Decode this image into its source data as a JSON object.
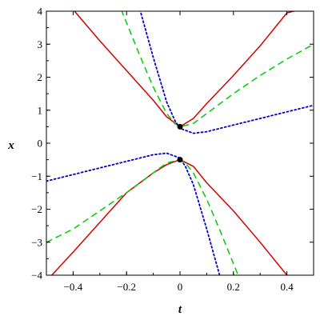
{
  "chart_data": {
    "type": "line",
    "title": "",
    "xlabel": "t",
    "ylabel": "x",
    "xlim": [
      -0.5,
      0.5
    ],
    "ylim": [
      -4,
      4
    ],
    "grid": false,
    "x_ticks": [
      -0.4,
      -0.2,
      0,
      0.2,
      0.4
    ],
    "x_tick_labels": [
      "−0.4",
      "−0.2",
      "0",
      "0.2",
      "0.4"
    ],
    "y_ticks": [
      -4,
      -3,
      -2,
      -1,
      0,
      1,
      2,
      3,
      4
    ],
    "y_tick_labels": [
      "−4",
      "−3",
      "−2",
      "−1",
      "0",
      "1",
      "2",
      "3",
      "4"
    ],
    "series": [
      {
        "style": "solid",
        "color": "#d40000",
        "x": [
          -0.4,
          -0.3,
          -0.2,
          -0.1,
          -0.05,
          0,
          0.05,
          0.1,
          0.2,
          0.3,
          0.4,
          0.5
        ],
        "y": [
          4.05,
          3.1,
          2.2,
          1.3,
          0.8,
          0.5,
          0.75,
          1.2,
          2.05,
          2.95,
          3.95,
          4.15
        ]
      },
      {
        "style": "solid",
        "color": "#d40000",
        "x": [
          -0.48,
          -0.4,
          -0.3,
          -0.2,
          -0.1,
          -0.05,
          0,
          0.05,
          0.1,
          0.2,
          0.3,
          0.4
        ],
        "y": [
          -4.0,
          -3.3,
          -2.4,
          -1.5,
          -0.9,
          -0.65,
          -0.5,
          -0.7,
          -1.2,
          -2.05,
          -3.0,
          -4.0
        ]
      },
      {
        "style": "dashed",
        "color": "#00cc00",
        "x": [
          -0.22,
          -0.15,
          -0.1,
          -0.05,
          -0.02,
          0,
          0.05,
          0.1,
          0.2,
          0.3,
          0.4,
          0.5
        ],
        "y": [
          4.05,
          2.65,
          1.7,
          0.9,
          0.6,
          0.5,
          0.6,
          0.9,
          1.5,
          2.05,
          2.55,
          3.0
        ]
      },
      {
        "style": "dashed",
        "color": "#00cc00",
        "x": [
          -0.5,
          -0.4,
          -0.3,
          -0.2,
          -0.1,
          -0.05,
          0,
          0.02,
          0.05,
          0.1,
          0.15,
          0.22
        ],
        "y": [
          -3.0,
          -2.6,
          -2.05,
          -1.5,
          -0.9,
          -0.6,
          -0.5,
          -0.6,
          -0.9,
          -1.7,
          -2.65,
          -4.05
        ]
      },
      {
        "style": "dotted",
        "color": "#0000cc",
        "x": [
          -0.15,
          -0.1,
          -0.05,
          -0.02,
          0,
          0.05,
          0.1,
          0.2,
          0.3,
          0.4,
          0.5
        ],
        "y": [
          4.05,
          2.6,
          1.25,
          0.7,
          0.45,
          0.3,
          0.35,
          0.55,
          0.75,
          0.95,
          1.15
        ]
      },
      {
        "style": "dotted",
        "color": "#0000cc",
        "x": [
          -0.5,
          -0.4,
          -0.3,
          -0.2,
          -0.1,
          -0.05,
          0,
          0.02,
          0.05,
          0.1,
          0.15
        ],
        "y": [
          -1.15,
          -0.95,
          -0.75,
          -0.55,
          -0.35,
          -0.3,
          -0.45,
          -0.7,
          -1.25,
          -2.6,
          -4.05
        ]
      }
    ],
    "points": [
      {
        "x": 0,
        "y": 0.5,
        "color": "#000000"
      },
      {
        "x": 0,
        "y": -0.5,
        "color": "#000000"
      }
    ]
  }
}
